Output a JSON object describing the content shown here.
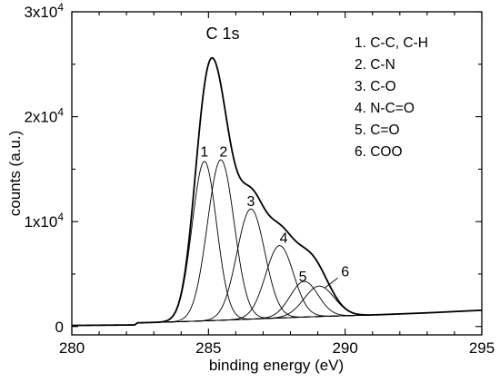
{
  "chart_data": {
    "type": "line",
    "title": "C 1s",
    "xlabel": "binding energy (eV)",
    "ylabel": "counts (a.u.)",
    "xlim": [
      280,
      295
    ],
    "ylim": [
      -800,
      30000
    ],
    "x_ticks": [
      280,
      285,
      290,
      295
    ],
    "x_tick_labels": [
      "280",
      "285",
      "290",
      "295"
    ],
    "y_ticks": [
      0,
      10000,
      20000,
      30000
    ],
    "y_tick_labels": [
      {
        "base": "0",
        "exp": ""
      },
      {
        "base": "1x10",
        "exp": "4"
      },
      {
        "base": "2x10",
        "exp": "4"
      },
      {
        "base": "3x10",
        "exp": "4"
      }
    ],
    "grid": false,
    "legend": {
      "placement": "top-right",
      "items": [
        "1. C-C, C-H",
        "2. C-N",
        "3. C-O",
        "4. N-C=O",
        "5. C=O",
        "6. COO"
      ]
    },
    "background": [
      {
        "x": 280.0,
        "y": 100
      },
      {
        "x": 282.3,
        "y": 150
      },
      {
        "x": 282.4,
        "y": 350
      },
      {
        "x": 283.5,
        "y": 420
      },
      {
        "x": 285.0,
        "y": 550
      },
      {
        "x": 287.0,
        "y": 750
      },
      {
        "x": 289.0,
        "y": 950
      },
      {
        "x": 291.0,
        "y": 1100
      },
      {
        "x": 293.0,
        "y": 1300
      },
      {
        "x": 295.0,
        "y": 1550
      }
    ],
    "components": [
      {
        "name": "1",
        "center": 284.85,
        "height": 15200,
        "fwhm": 1.05
      },
      {
        "name": "2",
        "center": 285.45,
        "height": 15300,
        "fwhm": 1.15
      },
      {
        "name": "3",
        "center": 286.55,
        "height": 10500,
        "fwhm": 1.2
      },
      {
        "name": "4",
        "center": 287.6,
        "height": 6900,
        "fwhm": 1.2
      },
      {
        "name": "5",
        "center": 288.5,
        "height": 3400,
        "fwhm": 1.2
      },
      {
        "name": "6",
        "center": 289.05,
        "height": 2900,
        "fwhm": 1.3
      }
    ],
    "peak_labels": [
      {
        "text": "1",
        "x": 284.85,
        "y": 16200
      },
      {
        "text": "2",
        "x": 285.55,
        "y": 16200
      },
      {
        "text": "3",
        "x": 286.55,
        "y": 11500
      },
      {
        "text": "4",
        "x": 287.75,
        "y": 8000
      },
      {
        "text": "5",
        "x": 288.45,
        "y": 4300
      },
      {
        "text": "6",
        "x": 290.0,
        "y": 4800
      }
    ],
    "colors": {
      "lines": "#000000",
      "background": "#ffffff"
    }
  }
}
